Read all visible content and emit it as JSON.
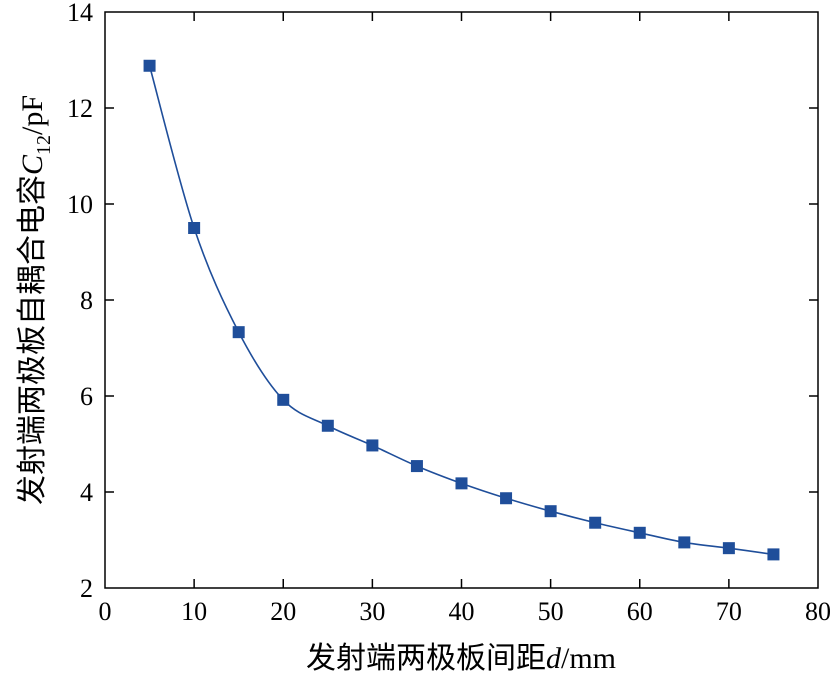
{
  "chart_data": {
    "type": "line",
    "xlabel": {
      "prefix": "发射端两极板间距",
      "var": "d",
      "suffix": "/mm"
    },
    "ylabel": {
      "prefix": "发射端两极板自耦合电容",
      "var": "C",
      "sub": "12",
      "suffix": "/pF"
    },
    "xlim": [
      0,
      80
    ],
    "ylim": [
      2,
      14
    ],
    "x_ticks": [
      0,
      10,
      20,
      30,
      40,
      50,
      60,
      70,
      80
    ],
    "y_ticks": [
      2,
      4,
      6,
      8,
      10,
      12,
      14
    ],
    "series": [
      {
        "name": "C12",
        "marker": "square",
        "color": "#1f4e9a",
        "x": [
          5,
          10,
          15,
          20,
          25,
          30,
          35,
          40,
          45,
          50,
          55,
          60,
          65,
          70,
          75
        ],
        "y": [
          12.88,
          9.5,
          7.33,
          5.92,
          5.38,
          4.97,
          4.54,
          4.18,
          3.87,
          3.6,
          3.36,
          3.15,
          2.95,
          2.83,
          2.7
        ]
      }
    ]
  }
}
